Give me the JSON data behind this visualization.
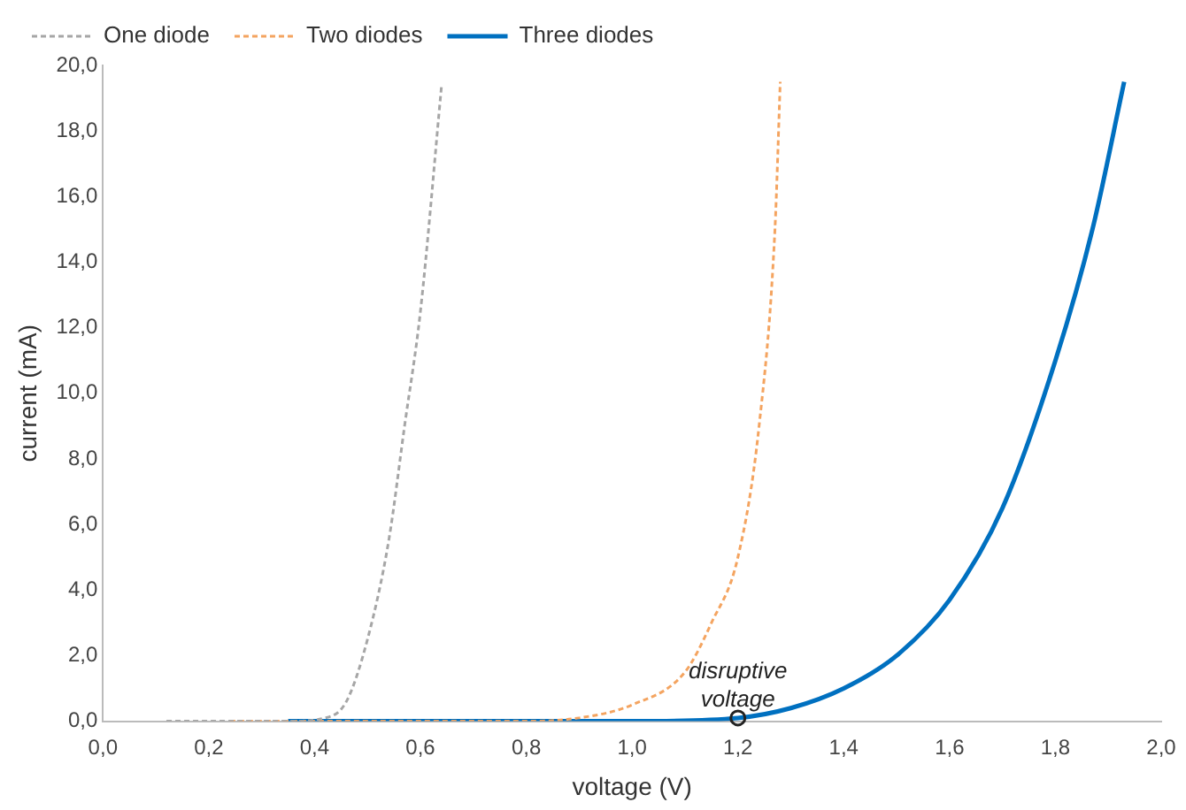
{
  "chart_data": {
    "type": "line",
    "xlabel": "voltage (V)",
    "ylabel": "current (mA)",
    "xlim": [
      0,
      2
    ],
    "xticks": [
      {
        "value": 0,
        "label": "0,0"
      },
      {
        "value": 0.2,
        "label": "0,2"
      },
      {
        "value": 0.4,
        "label": "0,4"
      },
      {
        "value": 0.6,
        "label": "0,6"
      },
      {
        "value": 0.8,
        "label": "0,8"
      },
      {
        "value": 1,
        "label": "1,0"
      },
      {
        "value": 1.2,
        "label": "1,2"
      },
      {
        "value": 1.4,
        "label": "1,4"
      },
      {
        "value": 1.6,
        "label": "1,6"
      },
      {
        "value": 1.8,
        "label": "1,8"
      },
      {
        "value": 2,
        "label": "2,0"
      }
    ],
    "ylim": [
      0,
      20
    ],
    "yticks": [
      {
        "value": 0,
        "label": "0,0"
      },
      {
        "value": 2,
        "label": "2,0"
      },
      {
        "value": 4,
        "label": "4,0"
      },
      {
        "value": 6,
        "label": "6,0"
      },
      {
        "value": 8,
        "label": "8,0"
      },
      {
        "value": 10,
        "label": "10,0"
      },
      {
        "value": 12,
        "label": "12,0"
      },
      {
        "value": 14,
        "label": "14,0"
      },
      {
        "value": 16,
        "label": "16,0"
      },
      {
        "value": 18,
        "label": "18,0"
      },
      {
        "value": 20,
        "label": "20,0"
      }
    ],
    "grid": false,
    "legend": "top",
    "marker": "none",
    "series": [
      {
        "name": "One diode",
        "color": "#a6a6a6",
        "line_style": "dashed",
        "x": [
          0.12,
          0.35,
          0.42,
          0.46,
          0.5,
          0.54,
          0.57,
          0.6,
          0.64
        ],
        "values": [
          0,
          0,
          0.1,
          0.6,
          2.5,
          5.5,
          9,
          12.5,
          19.4
        ]
      },
      {
        "name": "Two diodes",
        "color": "#f4a460",
        "line_style": "dashed",
        "x": [
          0.24,
          0.8,
          0.9,
          1.0,
          1.1,
          1.15,
          1.2,
          1.24,
          1.27,
          1.28
        ],
        "values": [
          0,
          0,
          0.1,
          0.5,
          1.5,
          3,
          5,
          9,
          15,
          19.5
        ]
      },
      {
        "name": "Three diodes",
        "color": "#0070c0",
        "line_style": "solid",
        "x": [
          0.35,
          1.0,
          1.2,
          1.3,
          1.4,
          1.5,
          1.6,
          1.7,
          1.8,
          1.87,
          1.93
        ],
        "values": [
          0,
          0,
          0.1,
          0.4,
          1,
          2,
          3.7,
          6.5,
          11,
          15,
          19.5
        ]
      }
    ],
    "annotations": [
      {
        "text": "disruptive voltage",
        "x": 1.2,
        "y": 0.1
      }
    ]
  }
}
